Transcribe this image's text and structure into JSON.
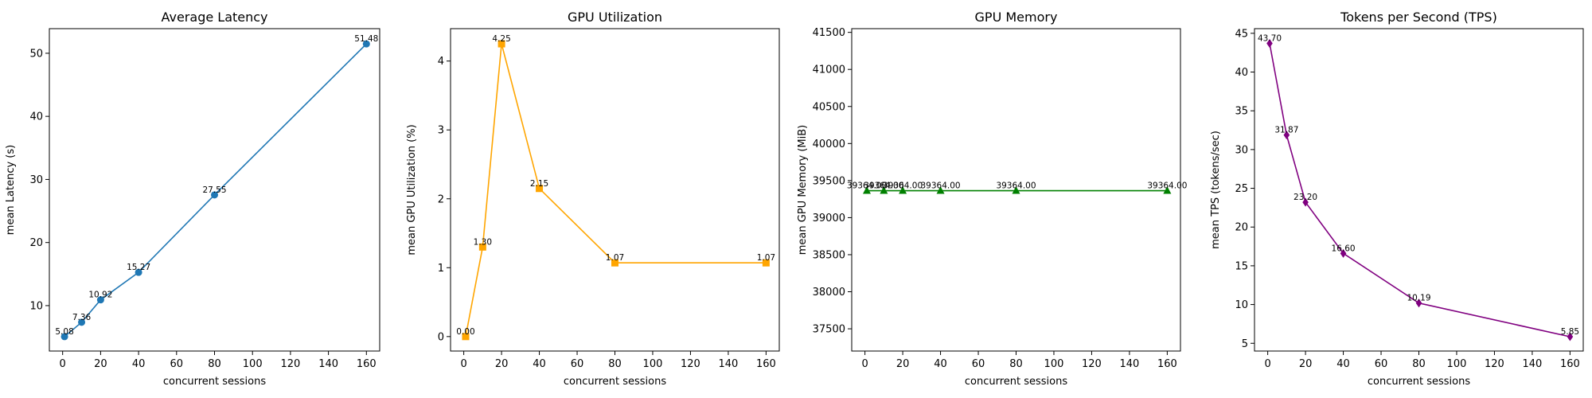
{
  "figure": {
    "background": "#ffffff"
  },
  "chart_data": [
    {
      "type": "line",
      "title": "Average Latency",
      "xlabel": "concurrent sessions",
      "ylabel": "mean Latency (s)",
      "x": [
        1,
        10,
        20,
        40,
        80,
        160
      ],
      "values": [
        5.08,
        7.36,
        10.92,
        15.27,
        27.55,
        51.48
      ],
      "labels": [
        "5.08",
        "7.36",
        "10.92",
        "15.27",
        "27.55",
        "51.48"
      ],
      "color": "#1f77b4",
      "marker": "circle",
      "xlim": [
        -7,
        167
      ],
      "ylim": [
        2.8,
        53.9
      ],
      "xticks": [
        0,
        20,
        40,
        60,
        80,
        100,
        120,
        140,
        160
      ],
      "yticks": [
        10,
        20,
        30,
        40,
        50
      ],
      "grid": false
    },
    {
      "type": "line",
      "title": "GPU Utilization",
      "xlabel": "concurrent sessions",
      "ylabel": "mean GPU Utilization (%)",
      "x": [
        1,
        10,
        20,
        40,
        80,
        160
      ],
      "values": [
        0.0,
        1.3,
        4.25,
        2.15,
        1.07,
        1.07
      ],
      "labels": [
        "0.00",
        "1.30",
        "4.25",
        "2.15",
        "1.07",
        "1.07"
      ],
      "color": "#ffa500",
      "marker": "square",
      "xlim": [
        -7,
        167
      ],
      "ylim": [
        -0.21,
        4.47
      ],
      "xticks": [
        0,
        20,
        40,
        60,
        80,
        100,
        120,
        140,
        160
      ],
      "yticks": [
        0,
        1,
        2,
        3,
        4
      ],
      "grid": false
    },
    {
      "type": "line",
      "title": "GPU Memory",
      "xlabel": "concurrent sessions",
      "ylabel": "mean GPU Memory (MiB)",
      "x": [
        1,
        10,
        20,
        40,
        80,
        160
      ],
      "values": [
        39364,
        39364,
        39364,
        39364,
        39364,
        39364
      ],
      "labels": [
        "39364.00",
        "39364.00",
        "39364.00",
        "39364.00",
        "39364.00",
        "39364.00"
      ],
      "color": "#008000",
      "marker": "triangle",
      "xlim": [
        -7,
        167
      ],
      "ylim": [
        37200,
        41550
      ],
      "xticks": [
        0,
        20,
        40,
        60,
        80,
        100,
        120,
        140,
        160
      ],
      "yticks": [
        37500,
        38000,
        38500,
        39000,
        39500,
        40000,
        40500,
        41000,
        41500
      ],
      "grid": false
    },
    {
      "type": "line",
      "title": "Tokens per Second (TPS)",
      "xlabel": "concurrent sessions",
      "ylabel": "mean TPS (tokens/sec)",
      "x": [
        1,
        10,
        20,
        40,
        80,
        160
      ],
      "values": [
        43.7,
        31.87,
        23.2,
        16.6,
        10.19,
        5.85
      ],
      "labels": [
        "43.70",
        "31.87",
        "23.20",
        "16.60",
        "10.19",
        "5.85"
      ],
      "color": "#800080",
      "marker": "diamond",
      "xlim": [
        -7,
        167
      ],
      "ylim": [
        4.0,
        45.6
      ],
      "xticks": [
        0,
        20,
        40,
        60,
        80,
        100,
        120,
        140,
        160
      ],
      "yticks": [
        5,
        10,
        15,
        20,
        25,
        30,
        35,
        40,
        45
      ],
      "grid": false
    }
  ]
}
